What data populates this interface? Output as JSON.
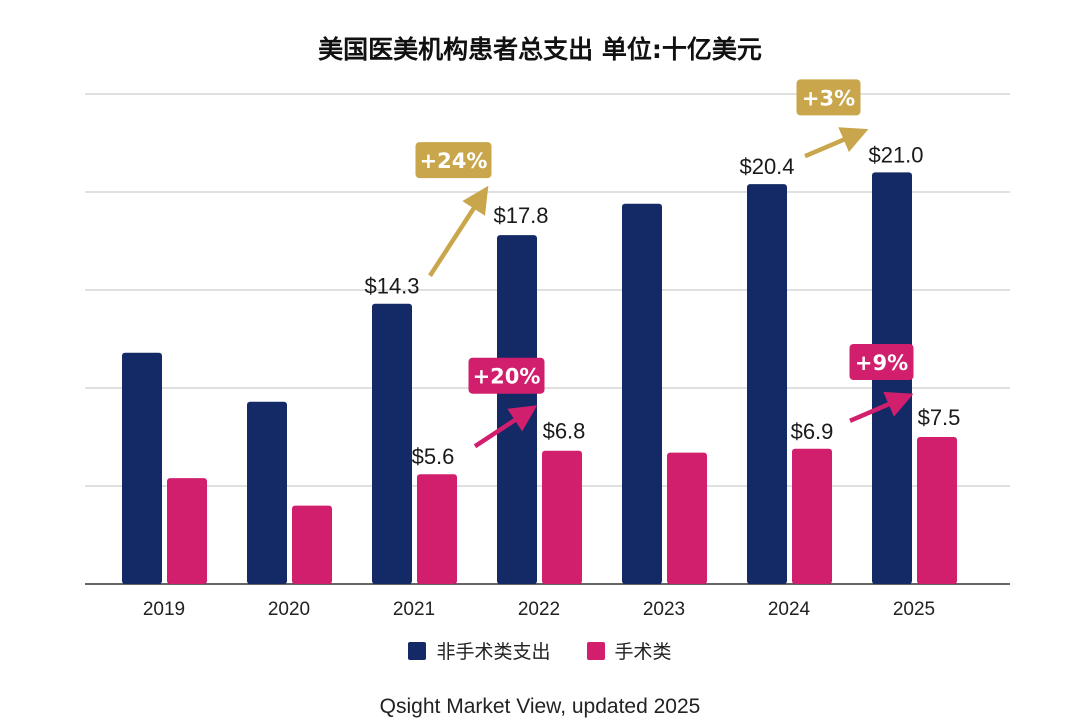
{
  "chart_data": {
    "type": "bar",
    "title": "美国医美机构患者总支出 单位:十亿美元",
    "categories": [
      "2019",
      "2020",
      "2021",
      "2022",
      "2023",
      "2024",
      "2025"
    ],
    "series": [
      {
        "name": "非手术类支出",
        "color": "#142a66",
        "values": [
          11.8,
          9.3,
          14.3,
          17.8,
          19.4,
          20.4,
          21.0
        ]
      },
      {
        "name": "手术类",
        "color": "#d11f6e",
        "values": [
          5.4,
          4.0,
          5.6,
          6.8,
          6.7,
          6.9,
          7.5
        ]
      }
    ],
    "ylim": [
      0,
      25
    ],
    "grid": true,
    "legend": "bottom",
    "data_labels": [
      {
        "series": 0,
        "category": "2021",
        "text": "$14.3"
      },
      {
        "series": 0,
        "category": "2022",
        "text": "$17.8"
      },
      {
        "series": 0,
        "category": "2024",
        "text": "$20.4"
      },
      {
        "series": 0,
        "category": "2025",
        "text": "$21.0"
      },
      {
        "series": 1,
        "category": "2021",
        "text": "$5.6"
      },
      {
        "series": 1,
        "category": "2022",
        "text": "$6.8"
      },
      {
        "series": 1,
        "category": "2024",
        "text": "$6.9"
      },
      {
        "series": 1,
        "category": "2025",
        "text": "$7.5"
      }
    ],
    "annotations": [
      {
        "text": "+24%",
        "from": "2021",
        "to": "2022",
        "series": 0,
        "color": "#c9a64b"
      },
      {
        "text": "+20%",
        "from": "2021",
        "to": "2022",
        "series": 1,
        "color": "#d11f6e"
      },
      {
        "text": "+3%",
        "from": "2024",
        "to": "2025",
        "series": 0,
        "color": "#c9a64b"
      },
      {
        "text": "+9%",
        "from": "2024",
        "to": "2025",
        "series": 1,
        "color": "#d11f6e"
      }
    ],
    "source": "Qsight Market View, updated 2025"
  }
}
